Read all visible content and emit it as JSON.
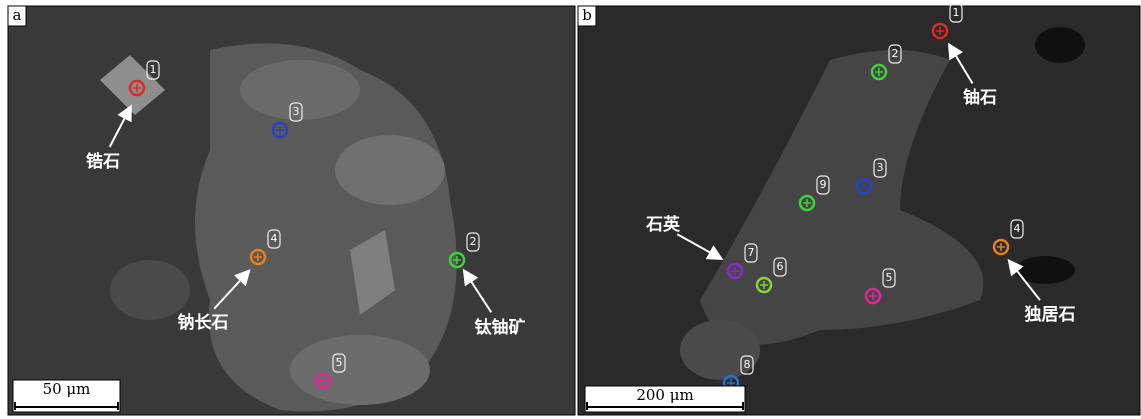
{
  "panels": [
    {
      "label": "a",
      "scale_bar": "50 μm",
      "spots": [
        {
          "number": "1",
          "color": "#e0282a"
        },
        {
          "number": "3",
          "color": "#2b3fc8"
        },
        {
          "number": "4",
          "color": "#e8801a"
        },
        {
          "number": "2",
          "color": "#3fd23a"
        },
        {
          "number": "5",
          "color": "#e0289a"
        }
      ],
      "annotations": [
        {
          "text": "锆石"
        },
        {
          "text": "钠长石"
        },
        {
          "text": "钛铀矿"
        }
      ]
    },
    {
      "label": "b",
      "scale_bar": "200 μm",
      "spots": [
        {
          "number": "1",
          "color": "#e0282a"
        },
        {
          "number": "2",
          "color": "#3fd23a"
        },
        {
          "number": "3",
          "color": "#2b3fc8"
        },
        {
          "number": "9",
          "color": "#3fd23a"
        },
        {
          "number": "4",
          "color": "#e8801a"
        },
        {
          "number": "7",
          "color": "#8a2bc8"
        },
        {
          "number": "6",
          "color": "#8ad23a"
        },
        {
          "number": "5",
          "color": "#e0289a"
        },
        {
          "number": "8",
          "color": "#2b6fc8"
        }
      ],
      "annotations": [
        {
          "text": "铀石"
        },
        {
          "text": "石英"
        },
        {
          "text": "独居石"
        }
      ]
    }
  ]
}
